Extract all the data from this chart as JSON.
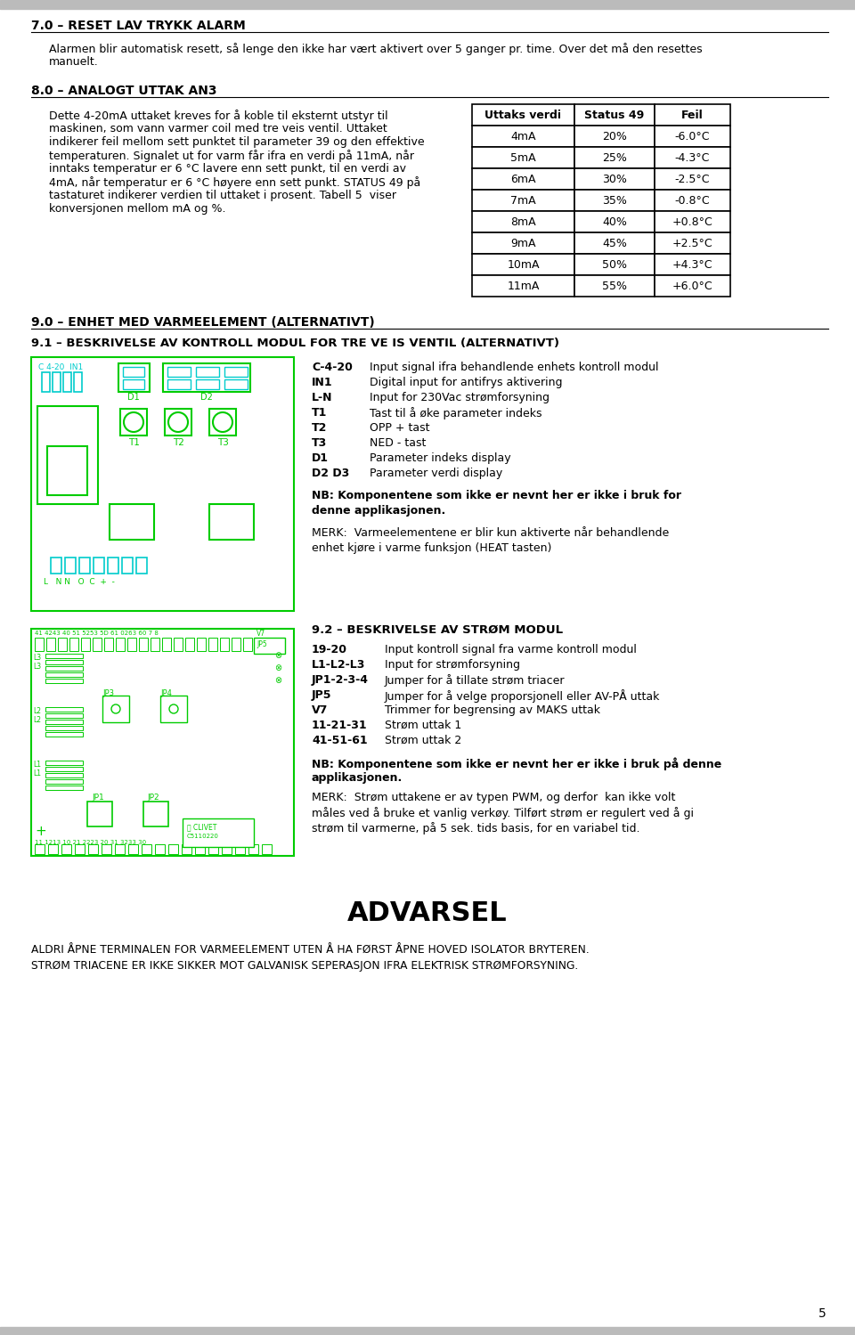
{
  "page_bg": "#ffffff",
  "green": "#00cc00",
  "cyan": "#00cccc",
  "section_70_title": "7.0 – RESET LAV TRYKK ALARM",
  "section_70_body1": "Alarmen blir automatisk resett, så lenge den ikke har vært aktivert over 5 ganger pr. time. Over det må den resettes",
  "section_70_body2": "manuelt.",
  "section_80_title": "8.0 – ANALOGT UTTAK AN3",
  "section_80_lines": [
    "Dette 4-20mA uttaket kreves for å koble til eksternt utstyr til",
    "maskinen, som vann varmer coil med tre veis ventil. Uttaket",
    "indikerer feil mellom sett punktet til parameter 39 og den effektive",
    "temperaturen. Signalet ut for varm får ifra en verdi på 11mA, når",
    "inntaks temperatur er 6 °C lavere enn sett punkt, til en verdi av",
    "4mA, når temperatur er 6 °C høyere enn sett punkt. STATUS 49 på",
    "tastaturet indikerer verdien til uttaket i prosent. Tabell 5  viser",
    "konversjonen mellom mA og %."
  ],
  "table_headers": [
    "Uttaks verdi",
    "Status 49",
    "Feil"
  ],
  "table_rows": [
    [
      "4mA",
      "20%",
      "-6.0°C"
    ],
    [
      "5mA",
      "25%",
      "-4.3°C"
    ],
    [
      "6mA",
      "30%",
      "-2.5°C"
    ],
    [
      "7mA",
      "35%",
      "-0.8°C"
    ],
    [
      "8mA",
      "40%",
      "+0.8°C"
    ],
    [
      "9mA",
      "45%",
      "+2.5°C"
    ],
    [
      "10mA",
      "50%",
      "+4.3°C"
    ],
    [
      "11mA",
      "55%",
      "+6.0°C"
    ]
  ],
  "section_90_title": "9.0 – ENHET MED VARMEELEMENT (ALTERNATIVT)",
  "section_91_title": "9.1 – BESKRIVELSE AV KONTROLL MODUL FOR TRE VE IS VENTIL (ALTERNATIVT)",
  "legend_91": [
    [
      "C-4-20",
      "Input signal ifra behandlende enhets kontroll modul"
    ],
    [
      "IN1",
      "Digital input for antifrys aktivering"
    ],
    [
      "L-N",
      "Input for 230Vac strømforsyning"
    ],
    [
      "T1",
      "Tast til å øke parameter indeks"
    ],
    [
      "T2",
      "OPP + tast"
    ],
    [
      "T3",
      "NED - tast"
    ],
    [
      "D1",
      "Parameter indeks display"
    ],
    [
      "D2 D3",
      "Parameter verdi display"
    ]
  ],
  "nb_91_line1": "NB: Komponentene som ikke er nevnt her er ikke i bruk for",
  "nb_91_line2": "denne applikasjonen.",
  "merk_91_line1": "MERK:  Varmeelementene er blir kun aktiverte når behandlende",
  "merk_91_line2": "enhet kjøre i varme funksjon (HEAT tasten)",
  "section_92_title": "9.2 – BESKRIVELSE AV STRØM MODUL",
  "legend_92": [
    [
      "19-20",
      "Input kontroll signal fra varme kontroll modul"
    ],
    [
      "L1-L2-L3",
      "Input for strømforsyning"
    ],
    [
      "JP1-2-3-4",
      "Jumper for å tillate strøm triacer"
    ],
    [
      "JP5",
      "Jumper for å velge proporsjonell eller AV-PÅ uttak"
    ],
    [
      "V7",
      "Trimmer for begrensing av MAKS uttak"
    ],
    [
      "11-21-31",
      "Strøm uttak 1"
    ],
    [
      "41-51-61",
      "Strøm uttak 2"
    ]
  ],
  "nb_92_line1": "NB: Komponentene som ikke er nevnt her er ikke i bruk på denne",
  "nb_92_line2": "applikasjonen.",
  "merk_92_line1": "MERK:  Strøm uttakene er av typen PWM, og derfor  kan ikke volt",
  "merk_92_line2": "måles ved å bruke et vanlig verkøy. Tilført strøm er regulert ved å gi",
  "merk_92_line3": "strøm til varmerne, på 5 sek. tids basis, for en variabel tid.",
  "advarsel_title": "ADVARSEL",
  "advarsel_line1": "ALDRI ÅPNE TERMINALEN FOR VARMEELEMENT UTEN Å HA FØRST ÅPNE HOVED ISOLATOR BRYTEREN.",
  "advarsel_line2": "STRØM TRIACENE ER IKKE SIKKER MOT GALVANISK SEPERASJON IFRA ELEKTRISK STRØMFORSYNING.",
  "page_number": "5"
}
